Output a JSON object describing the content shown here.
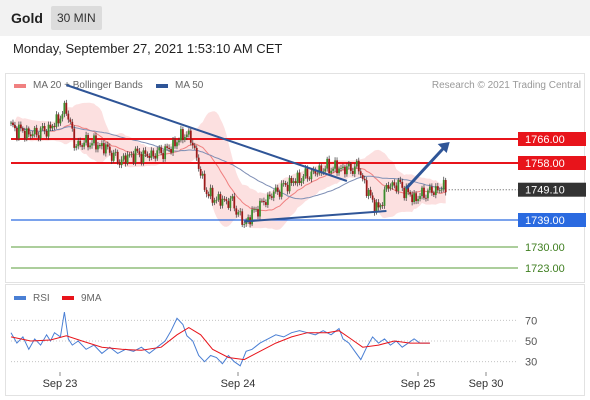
{
  "header": {
    "title": "Gold",
    "timeframe": "30 MIN"
  },
  "datetime": "Monday, September 27, 2021 1:53:10 AM CET",
  "legend": {
    "ma20": "MA 20 + Bollinger Bands",
    "ma50": "MA 50",
    "ma20_color": "#f08080",
    "ma50_color": "#2f5597"
  },
  "credit": "Research © 2021 Trading Central",
  "chart_data": [
    {
      "type": "candlestick",
      "instrument": "Gold",
      "interval": "30 MIN",
      "ylim": [
        1718,
        1788
      ],
      "close_path": [
        [
          0,
          1770.0
        ],
        [
          10,
          1767.5
        ],
        [
          20,
          1769.5
        ],
        [
          28,
          1776.0
        ],
        [
          30,
          1771.5
        ],
        [
          32,
          1764.0
        ],
        [
          40,
          1765.0
        ],
        [
          48,
          1763.0
        ],
        [
          55,
          1758.5
        ],
        [
          62,
          1761.0
        ],
        [
          70,
          1760.5
        ],
        [
          80,
          1762.5
        ],
        [
          88,
          1768.0
        ],
        [
          92,
          1765.0
        ],
        [
          96,
          1754.0
        ],
        [
          100,
          1747.0
        ],
        [
          106,
          1745.5
        ],
        [
          112,
          1745.0
        ],
        [
          118,
          1737.5
        ],
        [
          124,
          1742.5
        ],
        [
          132,
          1747.5
        ],
        [
          140,
          1751.0
        ],
        [
          150,
          1754.0
        ],
        [
          160,
          1756.5
        ],
        [
          170,
          1756.0
        ],
        [
          176,
          1756.5
        ],
        [
          180,
          1749.0
        ],
        [
          186,
          1742.0
        ],
        [
          190,
          1750.0
        ],
        [
          196,
          1751.0
        ],
        [
          204,
          1746.0
        ],
        [
          210,
          1748.0
        ],
        [
          220,
          1750.0
        ]
      ],
      "price_levels": [
        {
          "label": "1766.00",
          "value": 1766.0,
          "color": "#e8141b",
          "kind": "resistance"
        },
        {
          "label": "1758.00",
          "value": 1758.0,
          "color": "#e8141b",
          "kind": "resistance"
        },
        {
          "label": "1749.10",
          "value": 1749.1,
          "color": "#333333",
          "kind": "last"
        },
        {
          "label": "1739.00",
          "value": 1739.0,
          "color": "#2a6ae0",
          "kind": "pivot"
        },
        {
          "label": "1730.00",
          "value": 1730.0,
          "color": "#5a9e3a",
          "kind": "support"
        },
        {
          "label": "1723.00",
          "value": 1723.0,
          "color": "#5a9e3a",
          "kind": "support"
        }
      ],
      "trendlines": [
        {
          "from": [
            28,
            1784.0
          ],
          "to": [
            170,
            1752.0
          ]
        },
        {
          "from": [
            118,
            1738.5
          ],
          "to": [
            190,
            1742.0
          ]
        }
      ],
      "projection": {
        "from": [
          200,
          1749.5
        ],
        "to": [
          222,
          1765.0
        ],
        "color": "#2f5597"
      }
    },
    {
      "type": "line",
      "legend": [
        "RSI",
        "9MA"
      ],
      "legend_colors": {
        "RSI": "#4a7fd4",
        "9MA": "#e8141b"
      },
      "yticks": [
        70,
        50,
        30
      ],
      "ylim": [
        20,
        80
      ],
      "rsi": [
        [
          0,
          58
        ],
        [
          3,
          48
        ],
        [
          6,
          54
        ],
        [
          9,
          42
        ],
        [
          12,
          52
        ],
        [
          15,
          46
        ],
        [
          18,
          56
        ],
        [
          20,
          50
        ],
        [
          22,
          58
        ],
        [
          25,
          54
        ],
        [
          27,
          78
        ],
        [
          29,
          52
        ],
        [
          31,
          46
        ],
        [
          34,
          50
        ],
        [
          38,
          42
        ],
        [
          42,
          46
        ],
        [
          46,
          38
        ],
        [
          50,
          44
        ],
        [
          54,
          38
        ],
        [
          58,
          42
        ],
        [
          62,
          40
        ],
        [
          66,
          44
        ],
        [
          70,
          38
        ],
        [
          74,
          44
        ],
        [
          78,
          50
        ],
        [
          81,
          60
        ],
        [
          84,
          72
        ],
        [
          87,
          66
        ],
        [
          89,
          55
        ],
        [
          92,
          50
        ],
        [
          95,
          36
        ],
        [
          98,
          30
        ],
        [
          101,
          36
        ],
        [
          104,
          34
        ],
        [
          107,
          28
        ],
        [
          110,
          36
        ],
        [
          113,
          30
        ],
        [
          116,
          26
        ],
        [
          119,
          40
        ],
        [
          122,
          42
        ],
        [
          126,
          48
        ],
        [
          130,
          52
        ],
        [
          134,
          56
        ],
        [
          138,
          54
        ],
        [
          142,
          58
        ],
        [
          146,
          60
        ],
        [
          150,
          58
        ],
        [
          154,
          56
        ],
        [
          158,
          60
        ],
        [
          162,
          56
        ],
        [
          166,
          62
        ],
        [
          168,
          52
        ],
        [
          171,
          48
        ],
        [
          174,
          40
        ],
        [
          177,
          32
        ],
        [
          180,
          44
        ],
        [
          183,
          54
        ],
        [
          186,
          48
        ],
        [
          189,
          52
        ],
        [
          192,
          46
        ],
        [
          195,
          50
        ],
        [
          198,
          44
        ],
        [
          201,
          48
        ],
        [
          204,
          52
        ],
        [
          207,
          48
        ],
        [
          212,
          48
        ]
      ],
      "ma9": [
        [
          0,
          54
        ],
        [
          10,
          50
        ],
        [
          20,
          51
        ],
        [
          28,
          55
        ],
        [
          36,
          50
        ],
        [
          46,
          44
        ],
        [
          56,
          42
        ],
        [
          66,
          41
        ],
        [
          76,
          44
        ],
        [
          84,
          56
        ],
        [
          90,
          63
        ],
        [
          96,
          56
        ],
        [
          102,
          42
        ],
        [
          110,
          34
        ],
        [
          118,
          32
        ],
        [
          126,
          40
        ],
        [
          134,
          48
        ],
        [
          142,
          54
        ],
        [
          150,
          58
        ],
        [
          160,
          58
        ],
        [
          166,
          60
        ],
        [
          172,
          52
        ],
        [
          178,
          44
        ],
        [
          186,
          46
        ],
        [
          194,
          50
        ],
        [
          202,
          48
        ],
        [
          212,
          48
        ]
      ],
      "x_tick_labels": [
        "Sep 23",
        "Sep 24",
        "Sep 25",
        "Sep 30"
      ]
    }
  ]
}
